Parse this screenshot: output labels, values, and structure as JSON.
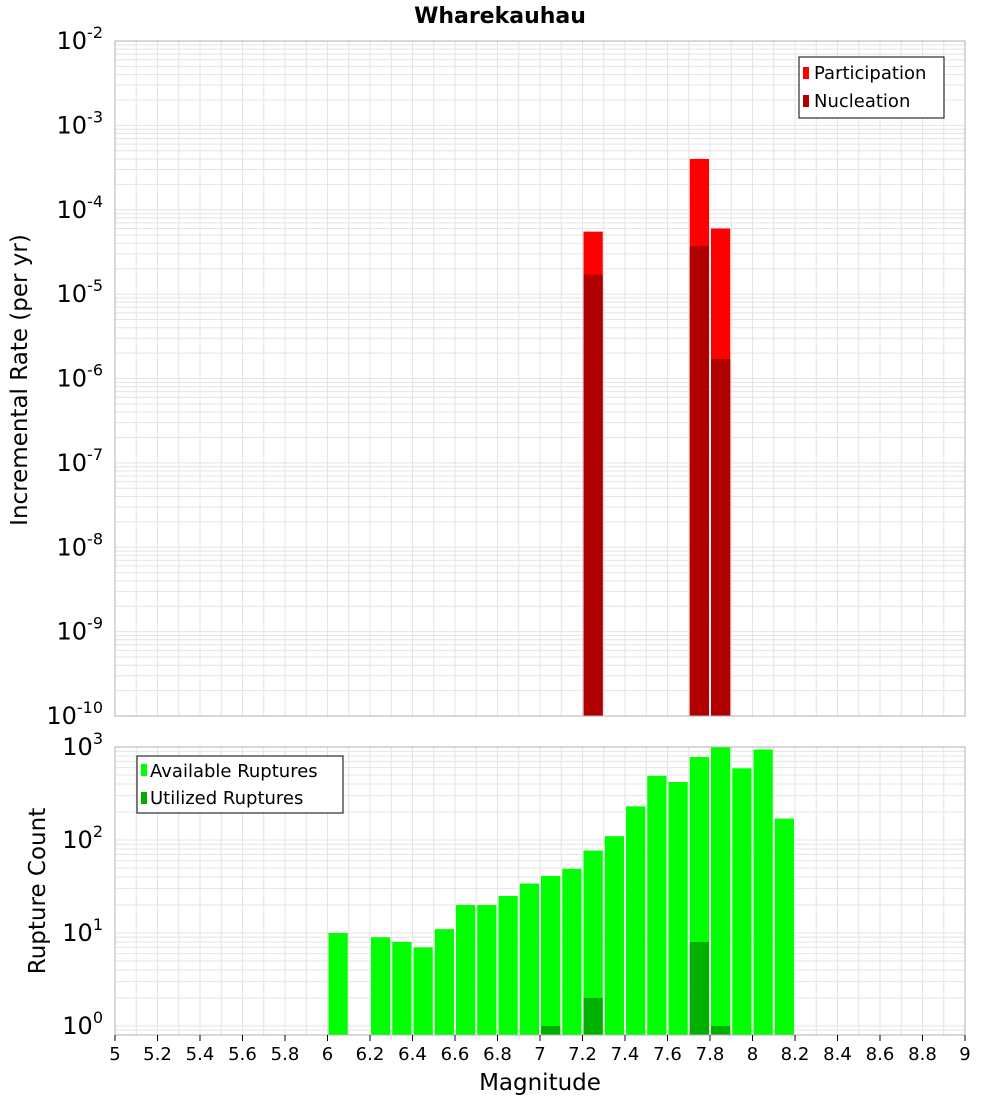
{
  "colors": {
    "participation": "#ff0000",
    "nucleation": "#b00000",
    "available": "#00ff00",
    "utilized": "#00b000",
    "grid": "#e4e4e4",
    "frame": "#b0b0b0"
  },
  "chart_data": [
    {
      "type": "bar",
      "title": "Wharekauhau",
      "ylabel": "Incremental Rate (per yr)",
      "xlabel": "",
      "y_scale": "log",
      "ylim": [
        1e-10,
        0.01
      ],
      "xlim": [
        5,
        9
      ],
      "bin_width": 0.1,
      "y_tick_exponents": [
        "-10",
        "-9",
        "-8",
        "-7",
        "-6",
        "-5",
        "-4",
        "-3",
        "-2"
      ],
      "legend": {
        "position": "top-right",
        "entries": [
          "Participation",
          "Nucleation"
        ]
      },
      "series": [
        {
          "name": "Participation",
          "x": [
            7.25,
            7.75,
            7.85
          ],
          "values": [
            5.5e-05,
            0.0004,
            6e-05
          ]
        },
        {
          "name": "Nucleation",
          "x": [
            7.25,
            7.75,
            7.85
          ],
          "values": [
            1.7e-05,
            3.7e-05,
            1.7e-06
          ]
        }
      ]
    },
    {
      "type": "bar",
      "title": "",
      "ylabel": "Rupture Count",
      "xlabel": "Magnitude",
      "y_scale": "log",
      "ylim": [
        0.8,
        1000
      ],
      "xlim": [
        5,
        9
      ],
      "bin_width": 0.1,
      "y_tick_exponents": [
        "0",
        "1",
        "2",
        "3"
      ],
      "x_tick_labels": [
        "5",
        "5.2",
        "5.4",
        "5.6",
        "5.8",
        "6",
        "6.2",
        "6.4",
        "6.6",
        "6.8",
        "7",
        "7.2",
        "7.4",
        "7.6",
        "7.8",
        "8",
        "8.2",
        "8.4",
        "8.6",
        "8.8",
        "9"
      ],
      "legend": {
        "position": "top-left",
        "entries": [
          "Available Ruptures",
          "Utilized Ruptures"
        ]
      },
      "series": [
        {
          "name": "Available Ruptures",
          "x": [
            6.05,
            6.25,
            6.35,
            6.45,
            6.55,
            6.65,
            6.75,
            6.85,
            6.95,
            7.05,
            7.15,
            7.25,
            7.35,
            7.45,
            7.55,
            7.65,
            7.75,
            7.85,
            7.95,
            8.05,
            8.15
          ],
          "values": [
            10,
            9,
            8,
            7,
            11,
            20,
            20,
            25,
            34,
            41,
            49,
            77,
            110,
            230,
            490,
            420,
            780,
            1000,
            590,
            940,
            170
          ]
        },
        {
          "name": "Utilized Ruptures",
          "x": [
            7.05,
            7.25,
            7.75,
            7.85
          ],
          "values": [
            1,
            2,
            8,
            1
          ]
        }
      ]
    }
  ]
}
